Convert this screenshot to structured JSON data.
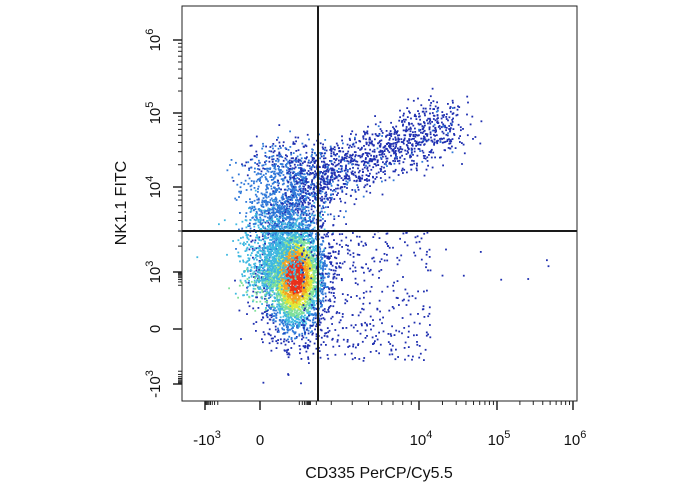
{
  "chart_data": {
    "type": "scatter",
    "xlabel": "CD335 PerCP/Cy5.5",
    "ylabel": "NK1.1 FITC",
    "x_scale": "biexponential",
    "y_scale": "biexponential",
    "x_ticks": [
      {
        "value": -1000,
        "base": "-10",
        "exp": "3"
      },
      {
        "value": 0,
        "base": "0",
        "exp": ""
      },
      {
        "value": 10000,
        "base": "10",
        "exp": "4"
      },
      {
        "value": 100000,
        "base": "10",
        "exp": "5"
      },
      {
        "value": 1000000,
        "base": "10",
        "exp": "6"
      }
    ],
    "y_ticks": [
      {
        "value": -1000,
        "base": "-10",
        "exp": "3"
      },
      {
        "value": 0,
        "base": "0",
        "exp": ""
      },
      {
        "value": 1000,
        "base": "10",
        "exp": "3"
      },
      {
        "value": 10000,
        "base": "10",
        "exp": "4"
      },
      {
        "value": 100000,
        "base": "10",
        "exp": "5"
      },
      {
        "value": 1000000,
        "base": "10",
        "exp": "6"
      }
    ],
    "quadrant_gates": {
      "x": 2500,
      "y": 3000
    },
    "populations": [
      {
        "description": "main cluster",
        "x_center": 100,
        "y_center": 700,
        "density": "highest"
      },
      {
        "description": "upper extension",
        "x_center": 500,
        "y_center": 8000,
        "density": "medium"
      },
      {
        "description": "double-positive diagonal",
        "x_center": 20000,
        "y_center": 40000,
        "density": "low"
      }
    ],
    "grid": false,
    "legend": "none",
    "colormap": [
      "#1f2fb0",
      "#2f78d8",
      "#3fb8e0",
      "#7fe09a",
      "#dfe83a",
      "#f5a21f",
      "#e8311c"
    ]
  }
}
